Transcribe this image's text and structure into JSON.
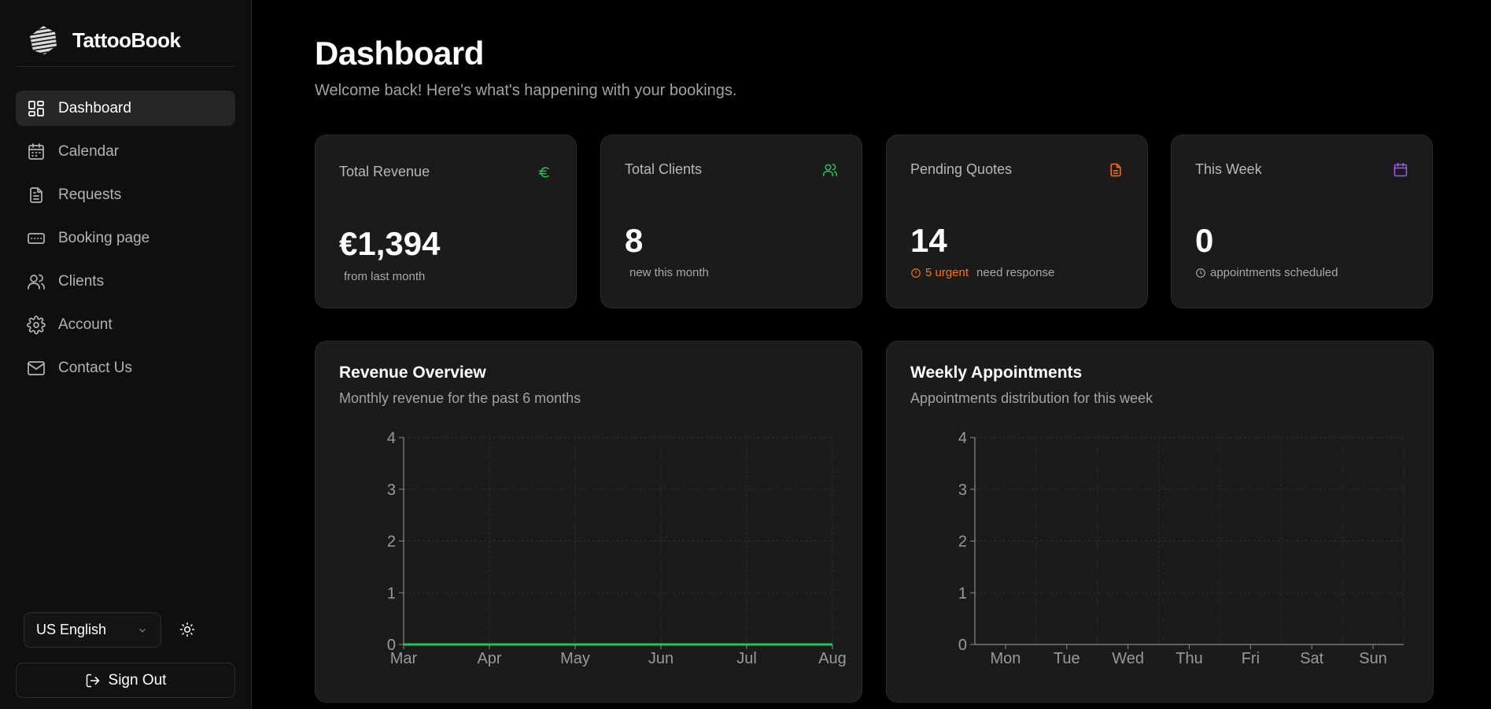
{
  "brand": {
    "name": "TattooBook"
  },
  "sidebar": {
    "items": [
      {
        "label": "Dashboard",
        "icon": "dashboard-icon",
        "active": true
      },
      {
        "label": "Calendar",
        "icon": "calendar-icon"
      },
      {
        "label": "Requests",
        "icon": "document-icon"
      },
      {
        "label": "Booking page",
        "icon": "browser-icon"
      },
      {
        "label": "Clients",
        "icon": "users-icon"
      },
      {
        "label": "Account",
        "icon": "gear-icon"
      },
      {
        "label": "Contact Us",
        "icon": "mail-icon"
      }
    ],
    "language": "US English",
    "sign_out": "Sign Out"
  },
  "page": {
    "title": "Dashboard",
    "subtitle": "Welcome back! Here's what's happening with your bookings."
  },
  "stats": {
    "revenue": {
      "label": "Total Revenue",
      "value": "€1,394",
      "note": "from last month",
      "icon": "euro-icon",
      "color": "#22c55e"
    },
    "clients": {
      "label": "Total Clients",
      "value": "8",
      "note": "new this month",
      "icon": "users-icon",
      "color": "#22c55e"
    },
    "quotes": {
      "label": "Pending Quotes",
      "value": "14",
      "urgent": "5 urgent",
      "note": "need response",
      "icon": "document-icon",
      "color": "#f97316"
    },
    "week": {
      "label": "This Week",
      "value": "0",
      "note": "appointments scheduled",
      "icon": "calendar-icon",
      "color": "#a855f7"
    }
  },
  "charts": {
    "revenue": {
      "title": "Revenue Overview",
      "subtitle": "Monthly revenue for the past 6 months"
    },
    "weekly": {
      "title": "Weekly Appointments",
      "subtitle": "Appointments distribution for this week"
    }
  },
  "chart_data": [
    {
      "type": "line",
      "title": "Revenue Overview",
      "categories": [
        "Mar",
        "Apr",
        "May",
        "Jun",
        "Jul",
        "Aug"
      ],
      "series": [
        {
          "values": [
            0,
            0,
            0,
            0,
            0,
            0
          ],
          "color": "#22c55e"
        }
      ],
      "yticks": [
        "0",
        "1",
        "2",
        "3",
        "4"
      ],
      "ylim": [
        0,
        4
      ],
      "grid": true
    },
    {
      "type": "bar",
      "title": "Weekly Appointments",
      "categories": [
        "Mon",
        "Tue",
        "Wed",
        "Thu",
        "Fri",
        "Sat",
        "Sun"
      ],
      "series": [
        {
          "values": [
            0,
            0,
            0,
            0,
            0,
            0,
            0
          ]
        }
      ],
      "yticks": [
        "0",
        "1",
        "2",
        "3",
        "4"
      ],
      "ylim": [
        0,
        4
      ],
      "grid": true
    }
  ]
}
